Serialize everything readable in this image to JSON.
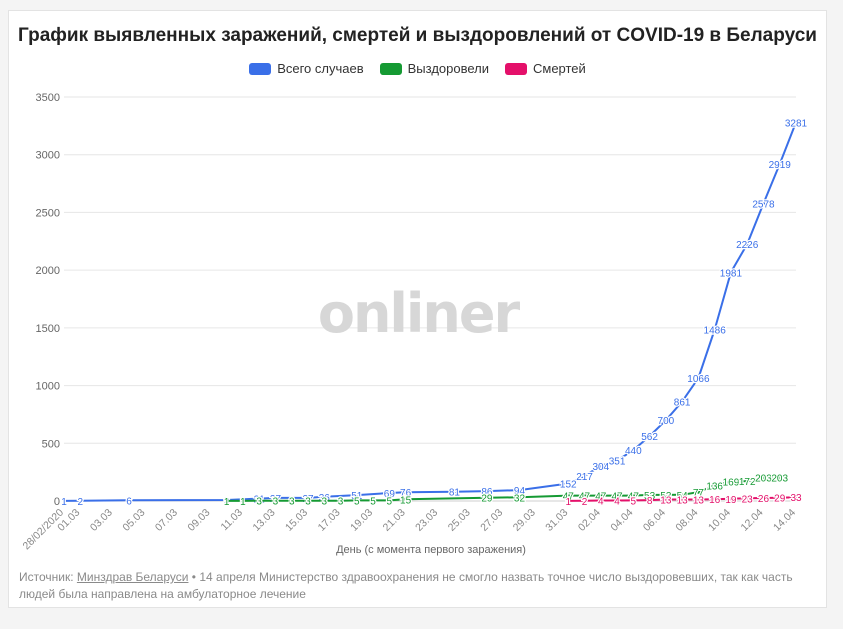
{
  "title": "График выявленных заражений, смертей и выздоровлений от COVID-19 в Беларуси",
  "watermark": "onliner",
  "legend": [
    {
      "label": "Всего случаев",
      "color": "#3a6fe8"
    },
    {
      "label": "Выздоровели",
      "color": "#159a33"
    },
    {
      "label": "Смертей",
      "color": "#e4106a"
    }
  ],
  "source": {
    "prefix": "Источник: ",
    "link": "Минздрав Беларуси",
    "note": " • 14 апреля Министерство здравоохранения не смогло назвать точное число выздоровевших, так как часть людей была направлена на амбулаторное лечение"
  },
  "chart_data": {
    "type": "line",
    "title": "График выявленных заражений, смертей и выздоровлений от COVID-19 в Беларуси",
    "xlabel": "День (с момента первого заражения)",
    "ylabel": "",
    "ylim": [
      0,
      3500
    ],
    "yticks": [
      0,
      500,
      1000,
      1500,
      2000,
      2500,
      3000,
      3500
    ],
    "xticks": [
      "28/02/2020",
      "01.03",
      "03.03",
      "05.03",
      "07.03",
      "09.03",
      "11.03",
      "13.03",
      "15.03",
      "17.03",
      "19.03",
      "21.03",
      "23.03",
      "25.03",
      "27.03",
      "29.03",
      "31.03",
      "02.04",
      "04.04",
      "06.04",
      "08.04",
      "10.04",
      "12.04",
      "14.04"
    ],
    "grid": true,
    "legend_position": "top-center",
    "series": [
      {
        "name": "Всего случаев",
        "color": "#3a6fe8",
        "points": [
          [
            "28/02/2020",
            1
          ],
          [
            "01.03",
            2
          ],
          [
            "04.03",
            6
          ],
          [
            "10.03",
            9
          ],
          [
            "12.03",
            21
          ],
          [
            "13.03",
            27
          ],
          [
            "15.03",
            27
          ],
          [
            "16.03",
            36
          ],
          [
            "18.03",
            51
          ],
          [
            "20.03",
            69
          ],
          [
            "21.03",
            76
          ],
          [
            "24.03",
            81
          ],
          [
            "26.03",
            86
          ],
          [
            "28.03",
            94
          ],
          [
            "31.03",
            152
          ],
          [
            "01.04",
            217
          ],
          [
            "02.04",
            304
          ],
          [
            "03.04",
            351
          ],
          [
            "04.04",
            440
          ],
          [
            "05.04",
            562
          ],
          [
            "06.04",
            700
          ],
          [
            "07.04",
            861
          ],
          [
            "08.04",
            1066
          ],
          [
            "09.04",
            1486
          ],
          [
            "10.04",
            1981
          ],
          [
            "11.04",
            2226
          ],
          [
            "12.04",
            2578
          ],
          [
            "13.04",
            2919
          ],
          [
            "14.04",
            3281
          ]
        ]
      },
      {
        "name": "Выздоровели",
        "color": "#159a33",
        "points": [
          [
            "10.03",
            1
          ],
          [
            "11.03",
            1
          ],
          [
            "12.03",
            3
          ],
          [
            "13.03",
            3
          ],
          [
            "14.03",
            3
          ],
          [
            "15.03",
            3
          ],
          [
            "16.03",
            3
          ],
          [
            "17.03",
            3
          ],
          [
            "18.03",
            5
          ],
          [
            "19.03",
            5
          ],
          [
            "20.03",
            5
          ],
          [
            "21.03",
            15
          ],
          [
            "26.03",
            29
          ],
          [
            "28.03",
            32
          ],
          [
            "31.03",
            47
          ],
          [
            "01.04",
            47
          ],
          [
            "02.04",
            47
          ],
          [
            "03.04",
            47
          ],
          [
            "04.04",
            47
          ],
          [
            "05.04",
            53
          ],
          [
            "06.04",
            53
          ],
          [
            "07.04",
            54
          ],
          [
            "08.04",
            77
          ],
          [
            "09.04",
            136
          ],
          [
            "10.04",
            169
          ],
          [
            "11.04",
            172
          ],
          [
            "12.04",
            203
          ],
          [
            "13.04",
            203
          ]
        ]
      },
      {
        "name": "Смертей",
        "color": "#e4106a",
        "points": [
          [
            "31.03",
            1
          ],
          [
            "01.04",
            2
          ],
          [
            "02.04",
            4
          ],
          [
            "03.04",
            4
          ],
          [
            "04.04",
            5
          ],
          [
            "05.04",
            8
          ],
          [
            "06.04",
            13
          ],
          [
            "07.04",
            13
          ],
          [
            "08.04",
            13
          ],
          [
            "09.04",
            16
          ],
          [
            "10.04",
            19
          ],
          [
            "11.04",
            23
          ],
          [
            "12.04",
            26
          ],
          [
            "13.04",
            29
          ],
          [
            "14.04",
            33
          ]
        ]
      }
    ]
  }
}
